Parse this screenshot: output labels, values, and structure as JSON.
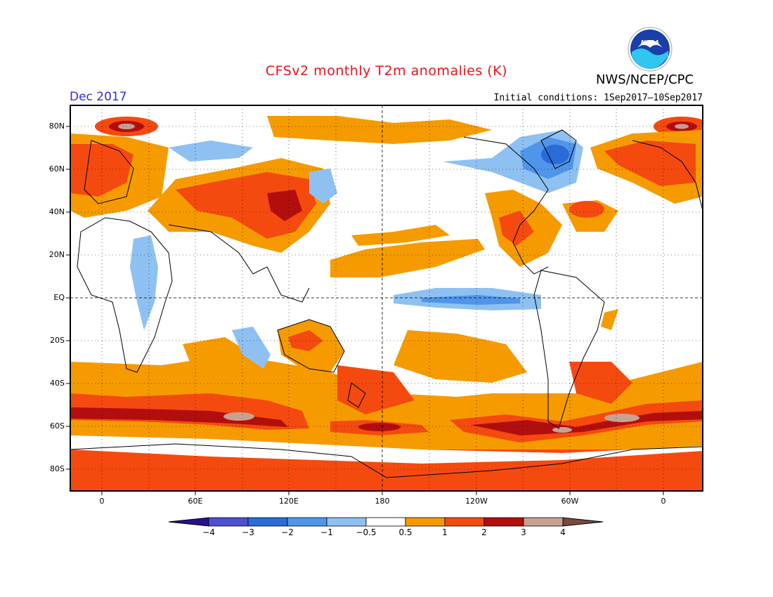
{
  "header": {
    "title": "CFSv2 monthly T2m anomalies (K)",
    "agency": "NWS/NCEP/CPC",
    "month": "Dec 2017",
    "initial_conditions": "Initial conditions: 1Sep2017–10Sep2017",
    "logo_icon": "noaa-logo-icon"
  },
  "map": {
    "lat_labels": [
      "80N",
      "60N",
      "40N",
      "20N",
      "EQ",
      "20S",
      "40S",
      "60S",
      "80S"
    ],
    "lon_labels": [
      "0",
      "60E",
      "120E",
      "180",
      "120W",
      "60W",
      "0"
    ]
  },
  "colorbar": {
    "labels": [
      "−4",
      "−3",
      "−2",
      "−1",
      "−0.5",
      "0.5",
      "1",
      "2",
      "3",
      "4"
    ],
    "colors": [
      "#2c0f8f",
      "#4f4fd2",
      "#2a6bd8",
      "#4f95ea",
      "#8ec1f2",
      "#ffffff",
      "#f59b00",
      "#f54a0f",
      "#b30e0e",
      "#c7a291",
      "#784a3c"
    ]
  }
}
